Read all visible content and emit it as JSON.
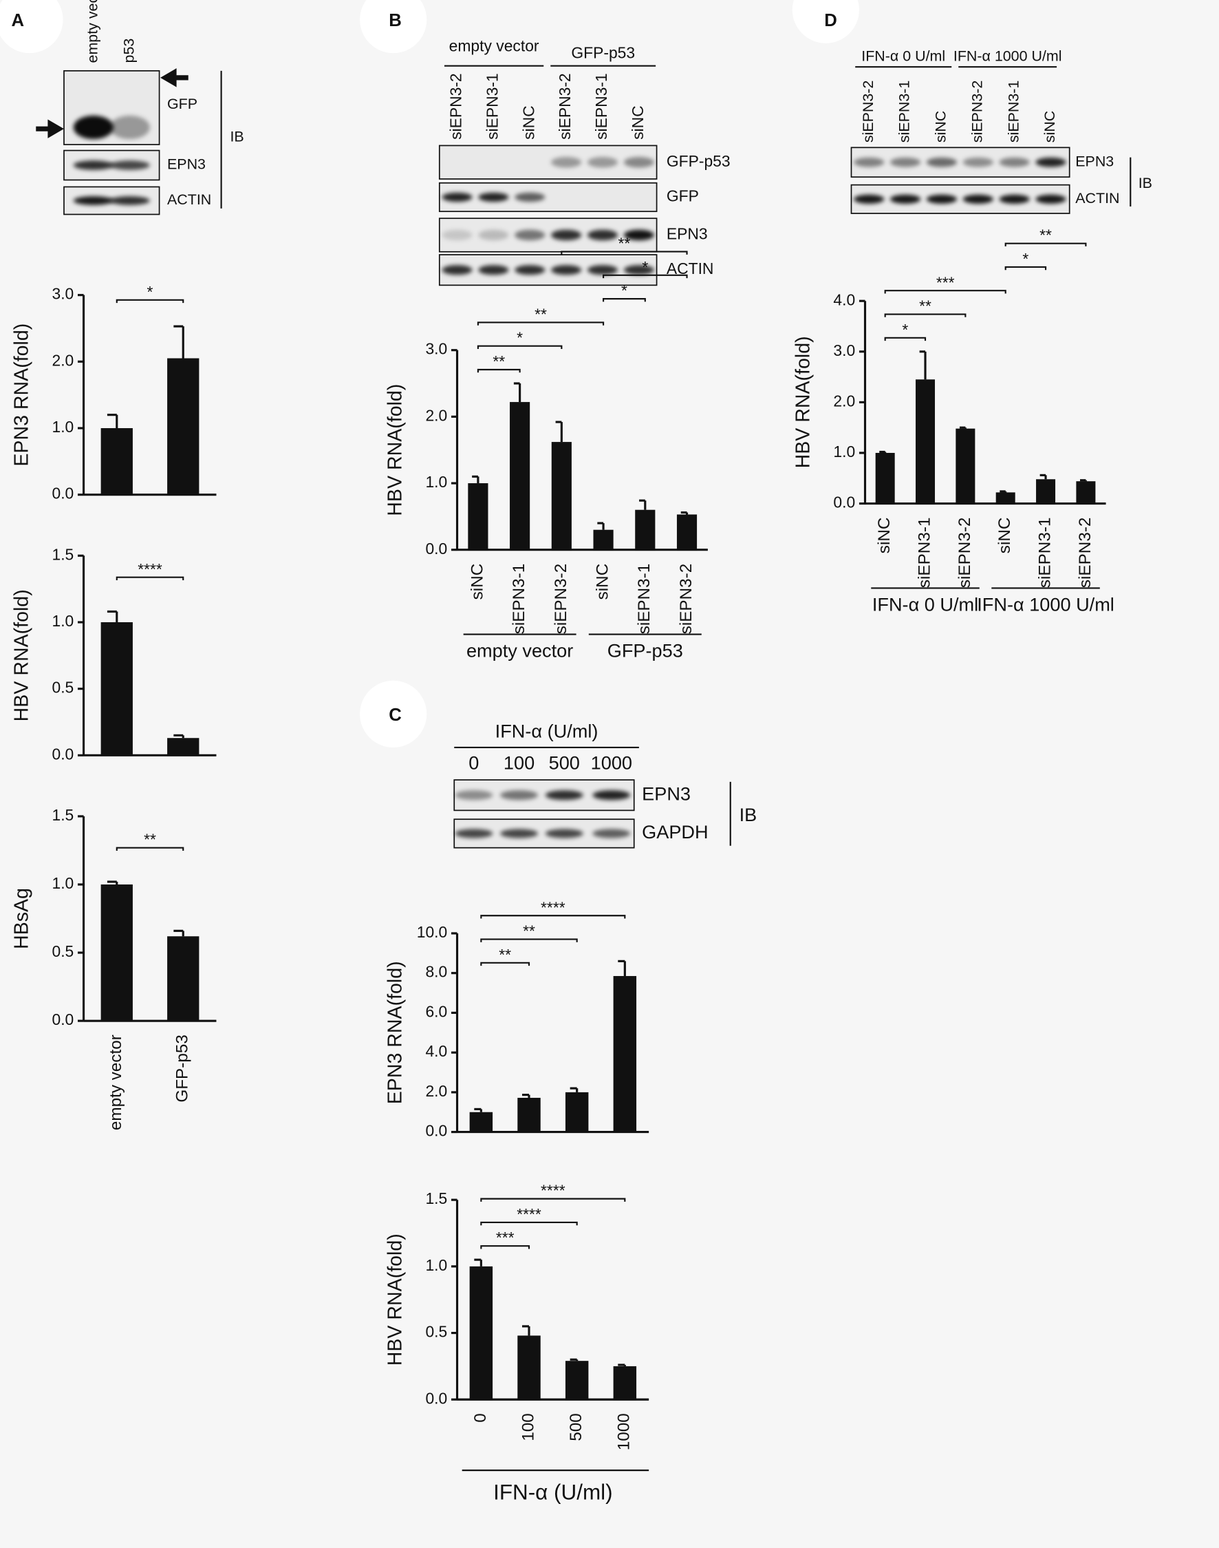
{
  "blots": {
    "A": {
      "panel": "A",
      "lanes": [
        "empty vector",
        "p53"
      ],
      "rows": [
        "GFP",
        "EPN3",
        "ACTIN"
      ],
      "ib": "IB"
    },
    "B": {
      "panel": "B",
      "groups": [
        "empty vector",
        "GFP-p53"
      ],
      "lanes": [
        "siEPN3-2",
        "siEPN3-1",
        "siNC",
        "siEPN3-2",
        "siEPN3-1",
        "siNC"
      ],
      "rows": [
        "GFP-p53",
        "GFP",
        "EPN3",
        "ACTIN"
      ]
    },
    "C": {
      "panel": "C",
      "header": "IFN-α (U/ml)",
      "lanes": [
        "0",
        "100",
        "500",
        "1000"
      ],
      "rows": [
        "EPN3",
        "GAPDH"
      ],
      "ib": "IB"
    },
    "D": {
      "panel": "D",
      "groups": [
        "IFN-α 0 U/ml",
        "IFN-α 1000 U/ml"
      ],
      "lanes": [
        "siEPN3-2",
        "siEPN3-1",
        "siNC",
        "siEPN3-2",
        "siEPN3-1",
        "siNC"
      ],
      "rows": [
        "EPN3",
        "ACTIN"
      ],
      "ib": "IB"
    }
  },
  "chart_data": [
    {
      "type": "bar",
      "y_label": "EPN3  RNA(fold)",
      "categories": [
        null,
        null
      ],
      "values": [
        1.0,
        2.05
      ],
      "errors": [
        0.2,
        0.48
      ],
      "color": "#111111",
      "ylim": [
        0,
        3
      ],
      "yticks": [
        {
          "value": 0,
          "label": "0.0"
        },
        {
          "value": 1,
          "label": "1.0"
        },
        {
          "value": 2,
          "label": "2.0"
        },
        {
          "value": 3,
          "label": "3.0"
        }
      ],
      "significance": [
        {
          "label": "*",
          "from": 0,
          "to": 1
        }
      ]
    },
    {
      "type": "bar",
      "y_label": "HBV  RNA(fold)",
      "categories": [
        null,
        null
      ],
      "values": [
        1.0,
        0.13
      ],
      "errors": [
        0.08,
        0.02
      ],
      "color": "#111111",
      "ylim": [
        0,
        1.5
      ],
      "yticks": [
        {
          "value": 0,
          "label": "0.0"
        },
        0.5,
        {
          "value": 1,
          "label": "1.0"
        },
        1.5
      ],
      "significance": [
        {
          "label": "****",
          "from": 0,
          "to": 1
        }
      ]
    },
    {
      "type": "bar",
      "y_label": "HBsAg",
      "categories": [
        "empty vector",
        "GFP-p53"
      ],
      "values": [
        1.0,
        0.62
      ],
      "errors": [
        0.02,
        0.04
      ],
      "color": "#111111",
      "ylim": [
        0,
        1.5
      ],
      "yticks": [
        {
          "value": 0,
          "label": "0.0"
        },
        0.5,
        {
          "value": 1,
          "label": "1.0"
        },
        1.5
      ],
      "significance": [
        {
          "label": "**",
          "from": 0,
          "to": 1
        }
      ]
    },
    {
      "type": "bar",
      "y_label": "HBV  RNA(fold)",
      "categories": [
        "siNC",
        "siEPN3-1",
        "siEPN3-2",
        "siNC",
        "siEPN3-1",
        "siEPN3-2"
      ],
      "values": [
        1.0,
        2.22,
        1.62,
        0.3,
        0.6,
        0.53
      ],
      "errors": [
        0.1,
        0.28,
        0.3,
        0.1,
        0.14,
        0.03
      ],
      "color": "#111111",
      "ylim": [
        0,
        3
      ],
      "yticks": [
        {
          "value": 0,
          "label": "0.0"
        },
        {
          "value": 1,
          "label": "1.0"
        },
        {
          "value": 2,
          "label": "2.0"
        },
        {
          "value": 3,
          "label": "3.0"
        }
      ],
      "significance": [
        {
          "label": "**",
          "from": 0,
          "to": 1
        },
        {
          "label": "*",
          "from": 0,
          "to": 2
        },
        {
          "label": "**",
          "from": 0,
          "to": 3
        },
        {
          "label": "*",
          "from": 3,
          "to": 4
        },
        {
          "label": "*",
          "from": 3,
          "to": 5
        },
        {
          "label": "**",
          "from": 2,
          "to": 5
        }
      ],
      "groups": [
        {
          "label": "empty vector",
          "from": 0,
          "to": 2
        },
        {
          "label": "GFP-p53",
          "from": 3,
          "to": 5
        }
      ]
    },
    {
      "type": "bar",
      "y_label": "EPN3  RNA(fold)",
      "categories": [
        null,
        null,
        null,
        null
      ],
      "values": [
        1.0,
        1.72,
        2.0,
        7.85
      ],
      "errors": [
        0.15,
        0.15,
        0.2,
        0.75
      ],
      "color": "#111111",
      "ylim": [
        0,
        10
      ],
      "yticks": [
        {
          "value": 0,
          "label": "0.0"
        },
        {
          "value": 2,
          "label": "2.0"
        },
        {
          "value": 4,
          "label": "4.0"
        },
        {
          "value": 6,
          "label": "6.0"
        },
        {
          "value": 8,
          "label": "8.0"
        },
        {
          "value": 10,
          "label": "10.0"
        }
      ],
      "significance": [
        {
          "label": "**",
          "from": 0,
          "to": 1
        },
        {
          "label": "**",
          "from": 0,
          "to": 2
        },
        {
          "label": "****",
          "from": 0,
          "to": 3
        }
      ]
    },
    {
      "type": "bar",
      "y_label": "HBV  RNA(fold)",
      "categories": [
        "0",
        "100",
        "500",
        "1000"
      ],
      "values": [
        1.0,
        0.48,
        0.29,
        0.25
      ],
      "errors": [
        0.05,
        0.07,
        0.01,
        0.01
      ],
      "color": "#111111",
      "ylim": [
        0,
        1.5
      ],
      "yticks": [
        {
          "value": 0,
          "label": "0.0"
        },
        0.5,
        {
          "value": 1,
          "label": "1.0"
        },
        1.5
      ],
      "significance": [
        {
          "label": "***",
          "from": 0,
          "to": 1
        },
        {
          "label": "****",
          "from": 0,
          "to": 2
        },
        {
          "label": "****",
          "from": 0,
          "to": 3
        }
      ],
      "x_label": "IFN-α (U/ml)"
    },
    {
      "type": "bar",
      "y_label": "HBV  RNA(fold)",
      "categories": [
        "siNC",
        "siEPN3-1",
        "siEPN3-2",
        "siNC",
        "siEPN3-1",
        "siEPN3-2"
      ],
      "values": [
        1.0,
        2.45,
        1.48,
        0.22,
        0.48,
        0.44
      ],
      "errors": [
        0.02,
        0.55,
        0.02,
        0.02,
        0.08,
        0.02
      ],
      "color": "#111111",
      "ylim": [
        0,
        4
      ],
      "yticks": [
        {
          "value": 0,
          "label": "0.0"
        },
        {
          "value": 1,
          "label": "1.0"
        },
        {
          "value": 2,
          "label": "2.0"
        },
        {
          "value": 3,
          "label": "3.0"
        },
        {
          "value": 4,
          "label": "4.0"
        }
      ],
      "significance": [
        {
          "label": "*",
          "from": 0,
          "to": 1
        },
        {
          "label": "**",
          "from": 0,
          "to": 2
        },
        {
          "label": "***",
          "from": 0,
          "to": 3
        },
        {
          "label": "*",
          "from": 3,
          "to": 4
        },
        {
          "label": "**",
          "from": 3,
          "to": 5
        }
      ],
      "groups": [
        {
          "label": "IFN-α 0 U/ml",
          "from": 0,
          "to": 2
        },
        {
          "label": "IFN-α 1000 U/ml",
          "from": 3,
          "to": 5
        }
      ]
    }
  ]
}
